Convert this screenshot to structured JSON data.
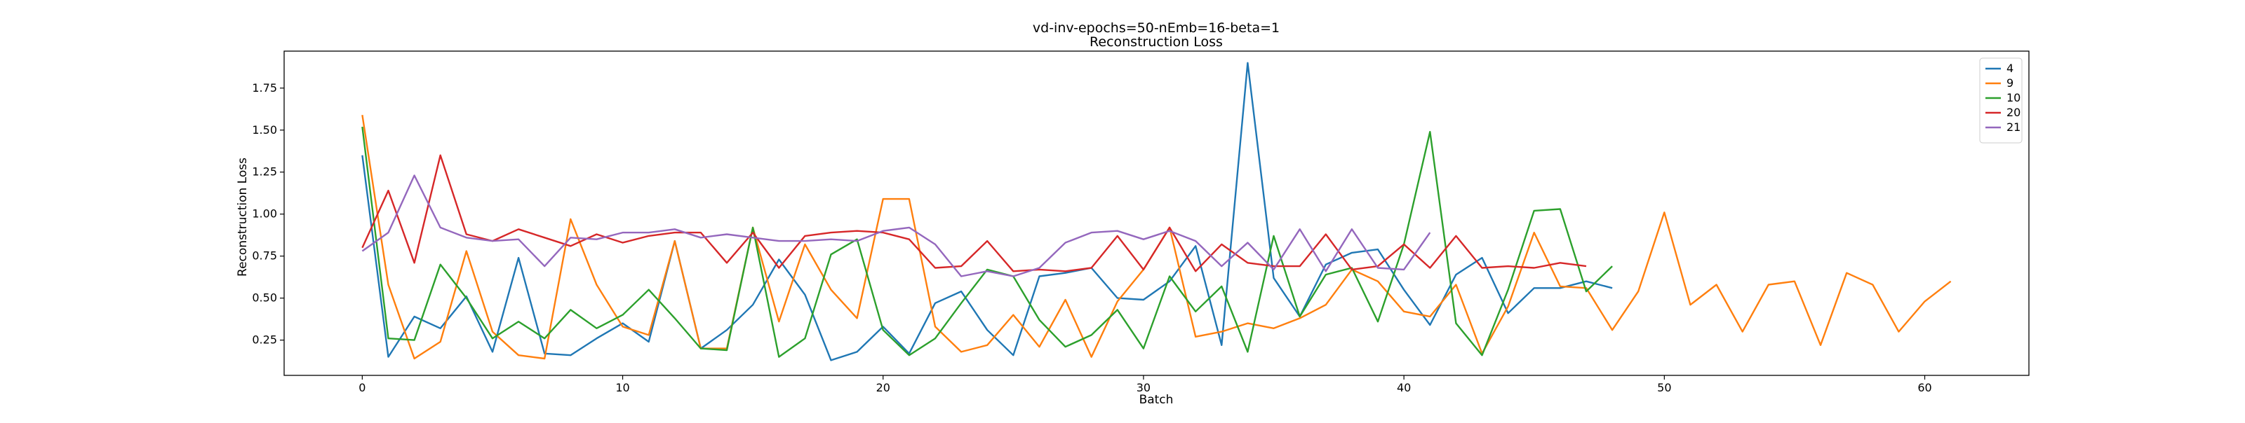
{
  "chart_data": {
    "type": "line",
    "title": "vd-inv-epochs=50-nEmb=16-beta=1",
    "subtitle": "Reconstruction Loss",
    "xlabel": "Batch",
    "ylabel": "Reconstruction Loss",
    "xlim": [
      -3,
      64
    ],
    "ylim": [
      0.04,
      1.97
    ],
    "xticks": [
      0,
      10,
      20,
      30,
      40,
      50,
      60
    ],
    "yticks": [
      0.25,
      0.5,
      0.75,
      1.0,
      1.25,
      1.5,
      1.75
    ],
    "xtick_labels": [
      "0",
      "10",
      "20",
      "30",
      "40",
      "50",
      "60"
    ],
    "ytick_labels": [
      "0.25",
      "0.50",
      "0.75",
      "1.00",
      "1.25",
      "1.50",
      "1.75"
    ],
    "grid": false,
    "legend_position": "top-right",
    "series": [
      {
        "name": "4",
        "color": "#1f77b4",
        "values": [
          1.35,
          0.15,
          0.39,
          0.32,
          0.51,
          0.18,
          0.74,
          0.17,
          0.16,
          0.26,
          0.35,
          0.24,
          0.84,
          0.2,
          0.31,
          0.46,
          0.73,
          0.52,
          0.13,
          0.18,
          0.33,
          0.17,
          0.47,
          0.54,
          0.31,
          0.16,
          0.63,
          0.65,
          0.68,
          0.5,
          0.49,
          0.6,
          0.81,
          0.22,
          1.9,
          0.62,
          0.39,
          0.7,
          0.77,
          0.79,
          0.55,
          0.34,
          0.64,
          0.74,
          0.41,
          0.56,
          0.56,
          0.6,
          0.56
        ]
      },
      {
        "name": "9",
        "color": "#ff7f0e",
        "values": [
          1.59,
          0.58,
          0.14,
          0.24,
          0.78,
          0.3,
          0.16,
          0.14,
          0.97,
          0.58,
          0.33,
          0.28,
          0.84,
          0.2,
          0.2,
          0.92,
          0.36,
          0.82,
          0.55,
          0.38,
          1.09,
          1.09,
          0.33,
          0.18,
          0.22,
          0.4,
          0.21,
          0.49,
          0.15,
          0.48,
          0.67,
          0.92,
          0.27,
          0.3,
          0.35,
          0.32,
          0.38,
          0.46,
          0.67,
          0.6,
          0.42,
          0.39,
          0.58,
          0.17,
          0.45,
          0.89,
          0.57,
          0.56,
          0.31,
          0.54,
          1.01,
          0.46,
          0.58,
          0.3,
          0.58,
          0.6,
          0.22,
          0.65,
          0.58,
          0.3,
          0.48,
          0.6
        ]
      },
      {
        "name": "10",
        "color": "#2ca02c",
        "values": [
          1.52,
          0.26,
          0.25,
          0.7,
          0.5,
          0.26,
          0.36,
          0.26,
          0.43,
          0.32,
          0.4,
          0.55,
          0.38,
          0.2,
          0.19,
          0.92,
          0.15,
          0.26,
          0.76,
          0.85,
          0.31,
          0.16,
          0.26,
          0.47,
          0.67,
          0.63,
          0.37,
          0.21,
          0.28,
          0.43,
          0.2,
          0.63,
          0.42,
          0.57,
          0.18,
          0.87,
          0.39,
          0.64,
          0.68,
          0.36,
          0.82,
          1.49,
          0.35,
          0.16,
          0.55,
          1.02,
          1.03,
          0.54,
          0.69
        ]
      },
      {
        "name": "20",
        "color": "#d62728",
        "values": [
          0.8,
          1.14,
          0.71,
          1.35,
          0.88,
          0.84,
          0.91,
          0.86,
          0.81,
          0.88,
          0.83,
          0.87,
          0.89,
          0.89,
          0.71,
          0.89,
          0.68,
          0.87,
          0.89,
          0.9,
          0.89,
          0.85,
          0.68,
          0.69,
          0.84,
          0.66,
          0.67,
          0.66,
          0.68,
          0.87,
          0.67,
          0.92,
          0.66,
          0.82,
          0.71,
          0.69,
          0.69,
          0.88,
          0.67,
          0.69,
          0.82,
          0.68,
          0.87,
          0.68,
          0.69,
          0.68,
          0.71,
          0.69
        ]
      },
      {
        "name": "21",
        "color": "#9467bd",
        "values": [
          0.78,
          0.89,
          1.23,
          0.92,
          0.86,
          0.84,
          0.85,
          0.69,
          0.86,
          0.85,
          0.89,
          0.89,
          0.91,
          0.86,
          0.88,
          0.86,
          0.84,
          0.84,
          0.85,
          0.84,
          0.9,
          0.92,
          0.82,
          0.63,
          0.66,
          0.63,
          0.68,
          0.83,
          0.89,
          0.9,
          0.85,
          0.9,
          0.84,
          0.69,
          0.83,
          0.67,
          0.91,
          0.66,
          0.91,
          0.68,
          0.67,
          0.89
        ]
      }
    ]
  }
}
